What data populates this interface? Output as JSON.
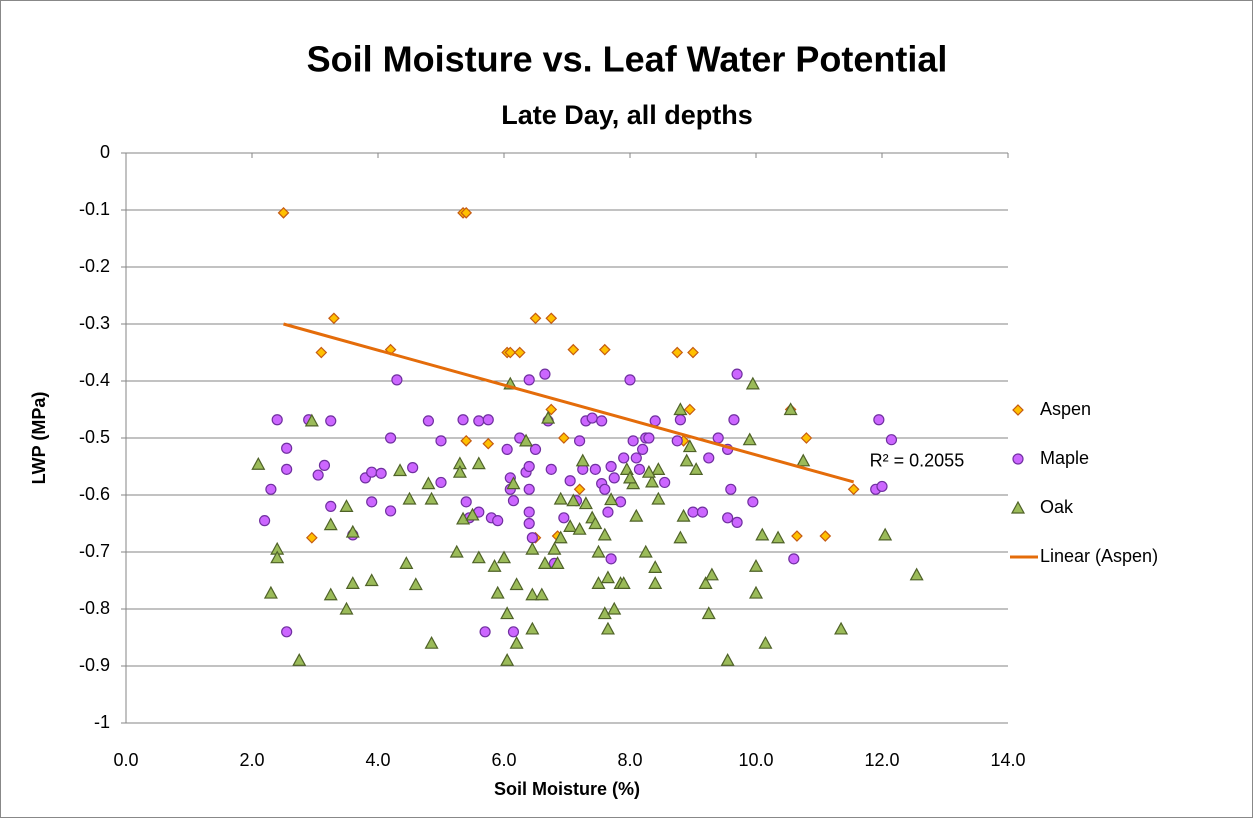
{
  "chart_data": {
    "type": "scatter",
    "title": "Soil Moisture vs. Leaf Water Potential",
    "subtitle": "Late Day, all depths",
    "x_label": "Soil Moisture (%)",
    "y_label": "LWP (MPa)",
    "annotation": "R² = 0.2055",
    "xlim": [
      0,
      14
    ],
    "ylim": [
      -1,
      0
    ],
    "xticks": [
      {
        "value": 0,
        "label": "0.0"
      },
      {
        "value": 2,
        "label": "2.0"
      },
      {
        "value": 4,
        "label": "4.0"
      },
      {
        "value": 6,
        "label": "6.0"
      },
      {
        "value": 8,
        "label": "8.0"
      },
      {
        "value": 10,
        "label": "10.0"
      },
      {
        "value": 12,
        "label": "12.0"
      },
      {
        "value": 14,
        "label": "14.0"
      }
    ],
    "yticks": [
      0,
      -0.1,
      -0.2,
      -0.3,
      -0.4,
      -0.5,
      -0.6,
      -0.7,
      -0.8,
      -0.9,
      -1
    ],
    "grid": true,
    "legend": "right",
    "series": [
      {
        "name": "Aspen",
        "marker": "diamond",
        "color": "#ffc000",
        "edge": "#c55a11",
        "x": [
          2.5,
          5.35,
          5.4,
          3.3,
          6.5,
          6.75,
          3.1,
          4.2,
          6.05,
          6.1,
          6.25,
          7.1,
          7.6,
          8.75,
          9.0,
          6.75,
          8.95,
          10.55,
          5.4,
          5.75,
          6.95,
          8.85,
          10.8,
          7.2,
          11.55,
          2.95,
          6.5,
          10.65,
          11.1,
          6.85
        ],
        "values": [
          -0.105,
          -0.105,
          -0.105,
          -0.29,
          -0.29,
          -0.29,
          -0.35,
          -0.345,
          -0.35,
          -0.35,
          -0.35,
          -0.345,
          -0.345,
          -0.35,
          -0.35,
          -0.45,
          -0.45,
          -0.45,
          -0.505,
          -0.51,
          -0.5,
          -0.505,
          -0.5,
          -0.59,
          -0.59,
          -0.675,
          -0.675,
          -0.672,
          -0.672,
          -0.672
        ]
      },
      {
        "name": "Maple",
        "marker": "circle",
        "color": "#cc66ff",
        "edge": "#7030a0",
        "x": [
          2.4,
          2.55,
          2.55,
          2.3,
          2.2,
          2.55,
          2.9,
          3.05,
          3.15,
          3.25,
          3.25,
          3.6,
          3.8,
          3.9,
          3.9,
          4.05,
          4.2,
          4.2,
          4.3,
          4.55,
          4.8,
          5.0,
          5.0,
          5.35,
          5.4,
          5.45,
          5.6,
          5.6,
          5.75,
          5.8,
          5.9,
          5.7,
          6.05,
          6.1,
          6.1,
          6.15,
          6.15,
          6.25,
          6.35,
          6.4,
          6.4,
          6.4,
          6.4,
          6.4,
          6.45,
          6.5,
          6.65,
          6.7,
          6.75,
          6.8,
          6.95,
          7.05,
          7.15,
          7.2,
          7.25,
          7.3,
          7.4,
          7.45,
          7.55,
          7.55,
          7.6,
          7.65,
          7.7,
          7.7,
          7.75,
          7.85,
          7.9,
          8.0,
          8.05,
          8.1,
          8.15,
          8.25,
          8.3,
          8.4,
          8.55,
          8.75,
          8.8,
          9.0,
          9.15,
          9.25,
          9.4,
          9.55,
          9.6,
          9.65,
          9.7,
          9.7,
          9.95,
          10.6,
          11.9,
          11.95,
          12.0,
          12.15,
          9.55,
          8.2
        ],
        "values": [
          -0.468,
          -0.518,
          -0.555,
          -0.59,
          -0.645,
          -0.84,
          -0.468,
          -0.565,
          -0.548,
          -0.47,
          -0.62,
          -0.67,
          -0.57,
          -0.56,
          -0.612,
          -0.562,
          -0.5,
          -0.628,
          -0.398,
          -0.552,
          -0.47,
          -0.505,
          -0.578,
          -0.468,
          -0.612,
          -0.64,
          -0.47,
          -0.63,
          -0.468,
          -0.64,
          -0.645,
          -0.84,
          -0.52,
          -0.57,
          -0.59,
          -0.61,
          -0.84,
          -0.5,
          -0.56,
          -0.398,
          -0.55,
          -0.59,
          -0.63,
          -0.65,
          -0.675,
          -0.52,
          -0.388,
          -0.47,
          -0.555,
          -0.72,
          -0.64,
          -0.575,
          -0.61,
          -0.505,
          -0.555,
          -0.47,
          -0.465,
          -0.555,
          -0.47,
          -0.58,
          -0.59,
          -0.63,
          -0.55,
          -0.712,
          -0.57,
          -0.612,
          -0.535,
          -0.398,
          -0.505,
          -0.535,
          -0.555,
          -0.5,
          -0.5,
          -0.47,
          -0.578,
          -0.505,
          -0.468,
          -0.63,
          -0.63,
          -0.535,
          -0.5,
          -0.64,
          -0.59,
          -0.468,
          -0.388,
          -0.648,
          -0.612,
          -0.712,
          -0.59,
          -0.468,
          -0.585,
          -0.503,
          -0.52,
          -0.52
        ]
      },
      {
        "name": "Oak",
        "marker": "triangle",
        "color": "#9bbb59",
        "edge": "#4f6228",
        "x": [
          2.1,
          2.3,
          2.4,
          2.4,
          2.75,
          2.95,
          3.25,
          3.25,
          3.5,
          3.5,
          3.6,
          3.6,
          3.9,
          4.35,
          4.45,
          4.5,
          4.6,
          4.8,
          4.85,
          4.85,
          5.25,
          5.3,
          5.3,
          5.35,
          5.5,
          5.6,
          5.6,
          5.85,
          5.9,
          6.0,
          6.05,
          6.05,
          6.1,
          6.15,
          6.2,
          6.2,
          6.35,
          6.45,
          6.45,
          6.45,
          6.6,
          6.65,
          6.7,
          6.8,
          6.85,
          6.9,
          6.9,
          7.05,
          7.1,
          7.2,
          7.25,
          7.3,
          7.4,
          7.45,
          7.5,
          7.5,
          7.6,
          7.6,
          7.65,
          7.65,
          7.7,
          7.75,
          7.85,
          7.9,
          7.95,
          8.05,
          8.1,
          8.25,
          8.35,
          8.4,
          8.4,
          8.45,
          8.45,
          8.8,
          8.8,
          8.85,
          8.9,
          8.95,
          9.05,
          9.2,
          9.25,
          9.3,
          9.55,
          9.9,
          9.95,
          10.0,
          10.0,
          10.1,
          10.15,
          10.35,
          10.55,
          10.75,
          11.35,
          12.05,
          12.55,
          8.0,
          8.3
        ],
        "values": [
          -0.546,
          -0.772,
          -0.695,
          -0.71,
          -0.89,
          -0.47,
          -0.652,
          -0.775,
          -0.62,
          -0.8,
          -0.665,
          -0.755,
          -0.75,
          -0.557,
          -0.72,
          -0.607,
          -0.757,
          -0.58,
          -0.607,
          -0.86,
          -0.7,
          -0.545,
          -0.56,
          -0.642,
          -0.635,
          -0.545,
          -0.71,
          -0.725,
          -0.772,
          -0.71,
          -0.808,
          -0.89,
          -0.405,
          -0.58,
          -0.757,
          -0.86,
          -0.505,
          -0.695,
          -0.775,
          -0.835,
          -0.775,
          -0.72,
          -0.465,
          -0.695,
          -0.72,
          -0.607,
          -0.675,
          -0.655,
          -0.61,
          -0.66,
          -0.54,
          -0.615,
          -0.64,
          -0.65,
          -0.7,
          -0.755,
          -0.67,
          -0.808,
          -0.745,
          -0.835,
          -0.608,
          -0.8,
          -0.755,
          -0.755,
          -0.555,
          -0.58,
          -0.637,
          -0.7,
          -0.577,
          -0.755,
          -0.727,
          -0.555,
          -0.607,
          -0.45,
          -0.675,
          -0.637,
          -0.54,
          -0.515,
          -0.555,
          -0.755,
          -0.808,
          -0.74,
          -0.89,
          -0.503,
          -0.405,
          -0.725,
          -0.772,
          -0.67,
          -0.86,
          -0.675,
          -0.45,
          -0.54,
          -0.835,
          -0.67,
          -0.74,
          -0.57,
          -0.56
        ]
      },
      {
        "name": "Linear (Aspen)",
        "marker": "line",
        "color": "#e46c0a",
        "x": [
          2.5,
          11.55
        ],
        "values": [
          -0.3,
          -0.577
        ]
      }
    ]
  }
}
